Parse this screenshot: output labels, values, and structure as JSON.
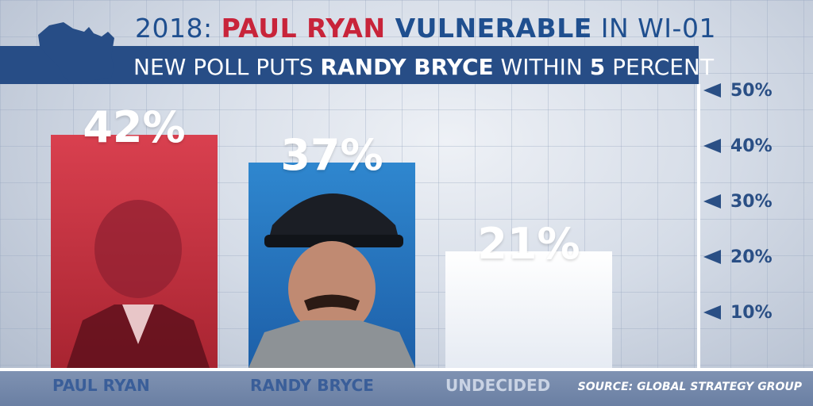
{
  "header": {
    "title_prefix": "2018: ",
    "title_name": "PAUL RYAN",
    "title_vuln": " VULNERABLE",
    "title_suffix": " IN WI-01",
    "subtitle_prefix": "NEW POLL PUTS ",
    "subtitle_name": "RANDY BRYCE",
    "subtitle_mid": " WITHIN ",
    "subtitle_num": "5",
    "subtitle_suffix": " PERCENT"
  },
  "source": "SOURCE: GLOBAL STRATEGY GROUP",
  "colors": {
    "red": "#c8243a",
    "blue": "#1f4f8f",
    "bar_blue": "#2f87cf",
    "subtitle_bg": "#274d86"
  },
  "chart_data": {
    "type": "bar",
    "categories": [
      "PAUL RYAN",
      "RANDY BRYCE",
      "UNDECIDED"
    ],
    "values": [
      42,
      37,
      21
    ],
    "value_labels": [
      "42%",
      "37%",
      "21%"
    ],
    "ylim": [
      0,
      55
    ],
    "yticks": [
      "50%",
      "40%",
      "30%",
      "20%",
      "10%"
    ],
    "title": "2018: PAUL RYAN VULNERABLE IN WI-01",
    "xlabel": "",
    "ylabel": "",
    "grid": true
  }
}
